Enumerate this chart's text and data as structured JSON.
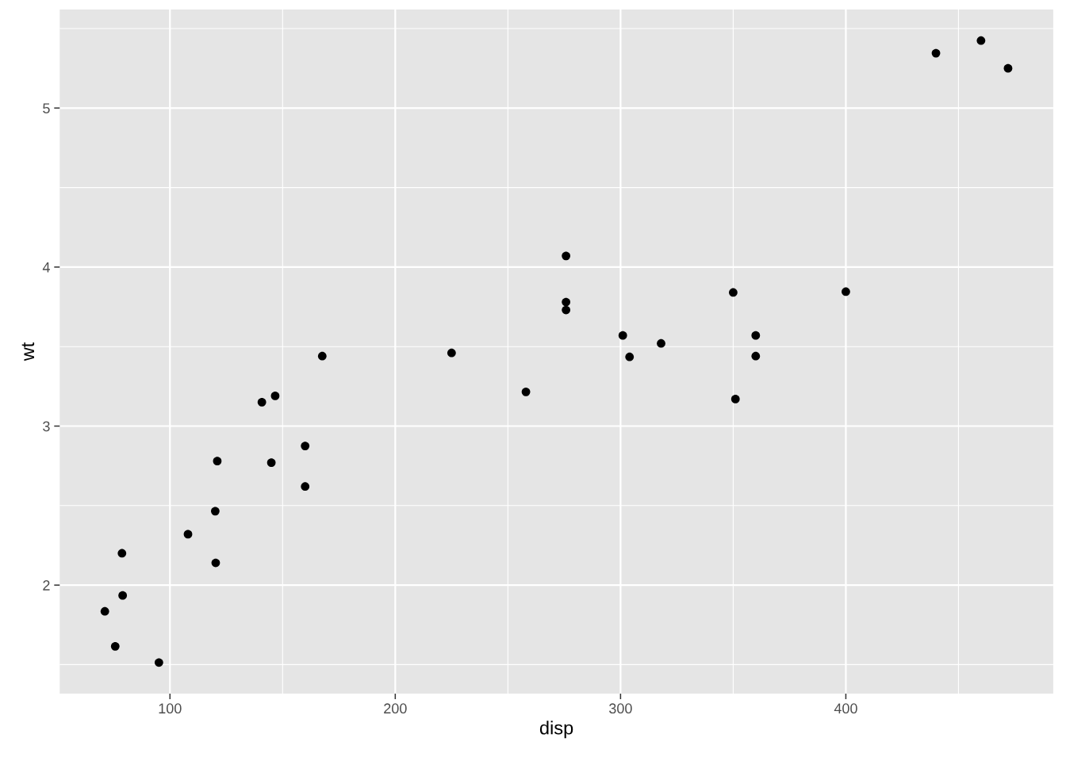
{
  "chart_data": {
    "type": "scatter",
    "xlabel": "disp",
    "ylabel": "wt",
    "x": [
      160,
      160,
      108,
      258,
      360,
      225,
      360,
      146.7,
      140.8,
      167.6,
      275.8,
      275.8,
      275.8,
      472,
      460,
      440,
      78.7,
      75.7,
      71.1,
      120.1,
      318,
      304,
      350,
      400,
      79,
      120.3,
      95.1,
      351,
      145,
      301,
      121
    ],
    "values": [
      2.62,
      2.875,
      2.32,
      3.215,
      3.44,
      3.46,
      3.57,
      3.19,
      3.15,
      3.44,
      4.07,
      3.73,
      3.78,
      5.25,
      5.424,
      5.345,
      2.2,
      1.615,
      1.835,
      2.465,
      3.52,
      3.435,
      3.84,
      3.845,
      1.935,
      2.14,
      1.513,
      3.17,
      2.77,
      3.57,
      2.78
    ],
    "color": "#000000",
    "marker": "circle",
    "xlim": [
      51.055,
      492.045
    ],
    "ylim": [
      1.31745,
      5.61955
    ],
    "xticks": [
      100,
      200,
      300,
      400
    ],
    "yticks": [
      2,
      3,
      4,
      5
    ],
    "grid": true
  }
}
